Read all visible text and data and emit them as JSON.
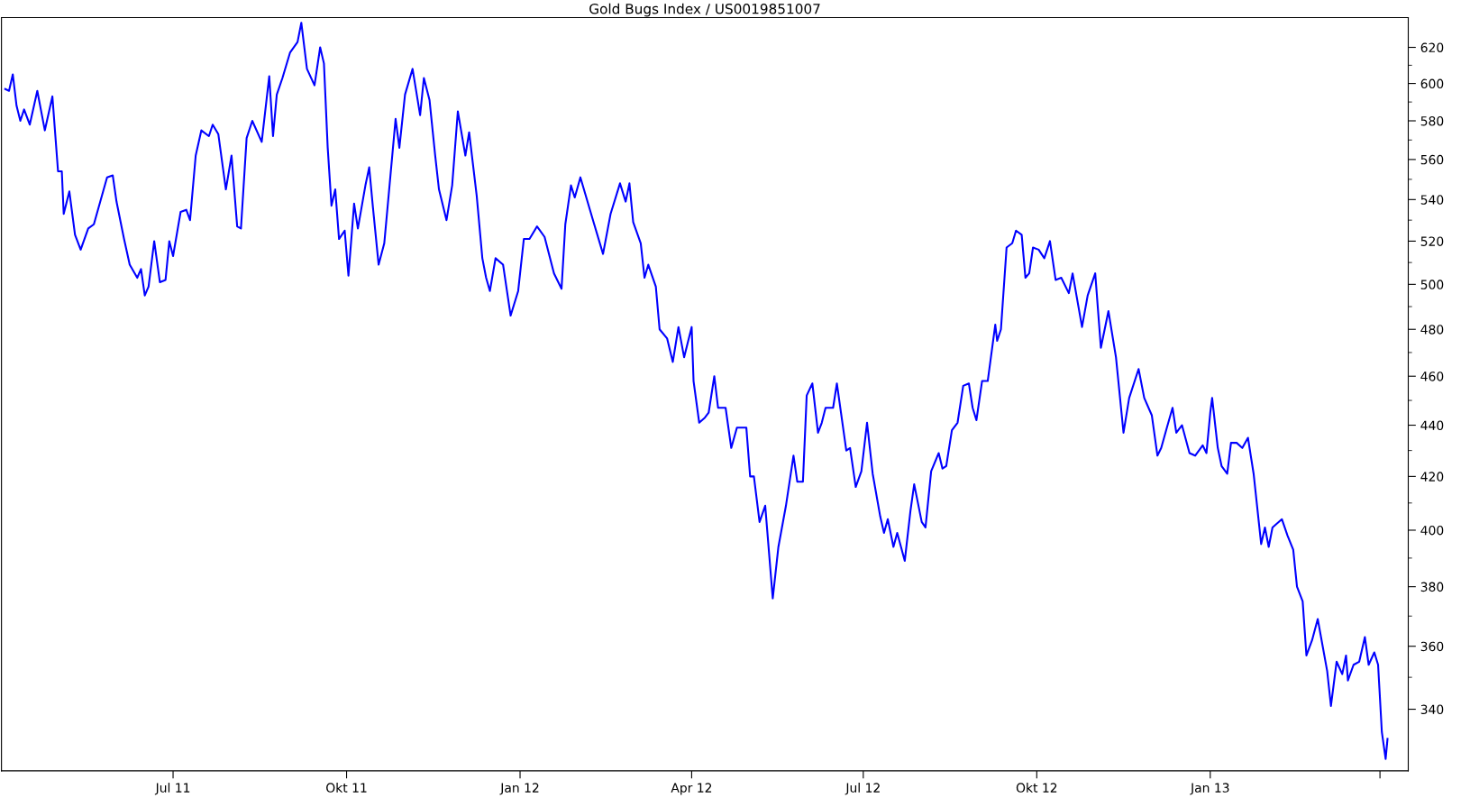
{
  "chart_data": {
    "type": "line",
    "title": "Gold Bugs Index / US0019851007",
    "log": "y",
    "grid": false,
    "marker": "none",
    "line_style": "solid",
    "xlim": [
      "2011-04-01",
      "2013-04-16"
    ],
    "xticks": [
      {
        "value": "2011-07-01",
        "label": "Jul 11"
      },
      {
        "value": "2011-10-01",
        "label": "Okt 11"
      },
      {
        "value": "2012-01-01",
        "label": "Jan 12"
      },
      {
        "value": "2012-04-01",
        "label": "Apr 12"
      },
      {
        "value": "2012-07-01",
        "label": "Jul 12"
      },
      {
        "value": "2012-10-01",
        "label": "Okt 12"
      },
      {
        "value": "2013-01-01",
        "label": "Jan 13"
      },
      {
        "value": "2013-04-01",
        "label": null
      }
    ],
    "ylim": [
      321.5,
      637
    ],
    "yticks": [
      340,
      360,
      380,
      400,
      420,
      440,
      460,
      480,
      500,
      520,
      540,
      560,
      580,
      600,
      620
    ],
    "series": [
      {
        "color": "#0000ff",
        "x": [
          "2011-04-03",
          "2011-04-05",
          "2011-04-07",
          "2011-04-09",
          "2011-04-11",
          "2011-04-13",
          "2011-04-16",
          "2011-04-20",
          "2011-04-24",
          "2011-04-28",
          "2011-05-01",
          "2011-05-03",
          "2011-05-04",
          "2011-05-07",
          "2011-05-10",
          "2011-05-13",
          "2011-05-17",
          "2011-05-20",
          "2011-05-24",
          "2011-05-27",
          "2011-05-30",
          "2011-06-01",
          "2011-06-05",
          "2011-06-08",
          "2011-06-12",
          "2011-06-14",
          "2011-06-16",
          "2011-06-18",
          "2011-06-21",
          "2011-06-24",
          "2011-06-27",
          "2011-06-29",
          "2011-07-01",
          "2011-07-05",
          "2011-07-08",
          "2011-07-10",
          "2011-07-13",
          "2011-07-16",
          "2011-07-20",
          "2011-07-22",
          "2011-07-25",
          "2011-07-29",
          "2011-08-01",
          "2011-08-04",
          "2011-08-06",
          "2011-08-09",
          "2011-08-12",
          "2011-08-17",
          "2011-08-21",
          "2011-08-23",
          "2011-08-25",
          "2011-08-28",
          "2011-09-01",
          "2011-09-05",
          "2011-09-07",
          "2011-09-10",
          "2011-09-14",
          "2011-09-17",
          "2011-09-19",
          "2011-09-21",
          "2011-09-23",
          "2011-09-25",
          "2011-09-27",
          "2011-09-30",
          "2011-10-02",
          "2011-10-05",
          "2011-10-07",
          "2011-10-11",
          "2011-10-13",
          "2011-10-15",
          "2011-10-18",
          "2011-10-21",
          "2011-10-27",
          "2011-10-29",
          "2011-11-01",
          "2011-11-05",
          "2011-11-09",
          "2011-11-11",
          "2011-11-14",
          "2011-11-17",
          "2011-11-19",
          "2011-11-23",
          "2011-11-26",
          "2011-11-29",
          "2011-12-03",
          "2011-12-05",
          "2011-12-09",
          "2011-12-12",
          "2011-12-14",
          "2011-12-16",
          "2011-12-19",
          "2011-12-23",
          "2011-12-27",
          "2011-12-31",
          "2012-01-03",
          "2012-01-06",
          "2012-01-10",
          "2012-01-14",
          "2012-01-19",
          "2012-01-23",
          "2012-01-25",
          "2012-01-28",
          "2012-01-30",
          "2012-02-02",
          "2012-02-09",
          "2012-02-14",
          "2012-02-18",
          "2012-02-23",
          "2012-02-26",
          "2012-02-28",
          "2012-03-01",
          "2012-03-05",
          "2012-03-07",
          "2012-03-09",
          "2012-03-13",
          "2012-03-15",
          "2012-03-19",
          "2012-03-22",
          "2012-03-25",
          "2012-03-28",
          "2012-04-01",
          "2012-04-02",
          "2012-04-05",
          "2012-04-08",
          "2012-04-10",
          "2012-04-13",
          "2012-04-15",
          "2012-04-19",
          "2012-04-22",
          "2012-04-25",
          "2012-04-30",
          "2012-05-02",
          "2012-05-04",
          "2012-05-07",
          "2012-05-10",
          "2012-05-14",
          "2012-05-17",
          "2012-05-21",
          "2012-05-25",
          "2012-05-27",
          "2012-05-30",
          "2012-06-01",
          "2012-06-04",
          "2012-06-07",
          "2012-06-09",
          "2012-06-11",
          "2012-06-15",
          "2012-06-17",
          "2012-06-22",
          "2012-06-24",
          "2012-06-27",
          "2012-06-30",
          "2012-07-03",
          "2012-07-06",
          "2012-07-10",
          "2012-07-12",
          "2012-07-14",
          "2012-07-17",
          "2012-07-19",
          "2012-07-23",
          "2012-07-26",
          "2012-07-28",
          "2012-08-01",
          "2012-08-03",
          "2012-08-06",
          "2012-08-10",
          "2012-08-12",
          "2012-08-14",
          "2012-08-17",
          "2012-08-20",
          "2012-08-23",
          "2012-08-26",
          "2012-08-28",
          "2012-08-30",
          "2012-09-02",
          "2012-09-05",
          "2012-09-09",
          "2012-09-10",
          "2012-09-12",
          "2012-09-15",
          "2012-09-18",
          "2012-09-20",
          "2012-09-23",
          "2012-09-25",
          "2012-09-27",
          "2012-09-29",
          "2012-10-02",
          "2012-10-05",
          "2012-10-08",
          "2012-10-11",
          "2012-10-14",
          "2012-10-18",
          "2012-10-20",
          "2012-10-25",
          "2012-10-28",
          "2012-11-01",
          "2012-11-04",
          "2012-11-08",
          "2012-11-12",
          "2012-11-16",
          "2012-11-19",
          "2012-11-24",
          "2012-11-27",
          "2012-12-01",
          "2012-12-04",
          "2012-12-06",
          "2012-12-09",
          "2012-12-12",
          "2012-12-14",
          "2012-12-17",
          "2012-12-21",
          "2012-12-24",
          "2012-12-28",
          "2012-12-30",
          "2013-01-01",
          "2013-01-02",
          "2013-01-05",
          "2013-01-07",
          "2013-01-10",
          "2013-01-12",
          "2013-01-15",
          "2013-01-18",
          "2013-01-21",
          "2013-01-24",
          "2013-01-28",
          "2013-01-30",
          "2013-02-01",
          "2013-02-03",
          "2013-02-08",
          "2013-02-11",
          "2013-02-14",
          "2013-02-16",
          "2013-02-19",
          "2013-02-21",
          "2013-02-24",
          "2013-02-27",
          "2013-03-04",
          "2013-03-06",
          "2013-03-09",
          "2013-03-12",
          "2013-03-14",
          "2013-03-15",
          "2013-03-18",
          "2013-03-21",
          "2013-03-24",
          "2013-03-26",
          "2013-03-29",
          "2013-03-31",
          "2013-04-02",
          "2013-04-04",
          "2013-04-05"
        ],
        "values": [
          597,
          596,
          605,
          588,
          580,
          586,
          578,
          596,
          575,
          593,
          554,
          554,
          533,
          544,
          523,
          516,
          526,
          528,
          541,
          551,
          552,
          539,
          521,
          509,
          503,
          507,
          495,
          499,
          520,
          501,
          502,
          520,
          513,
          534,
          535,
          530,
          562,
          575,
          572,
          578,
          573,
          545,
          562,
          527,
          526,
          571,
          580,
          569,
          604,
          572,
          594,
          603,
          617,
          623,
          634,
          608,
          599,
          620,
          611,
          566,
          537,
          545,
          521,
          525,
          504,
          538,
          526,
          547,
          556,
          536,
          509,
          519,
          581,
          566,
          594,
          608,
          583,
          603,
          591,
          562,
          545,
          530,
          547,
          585,
          562,
          574,
          542,
          512,
          503,
          497,
          512,
          509,
          486,
          497,
          521,
          521,
          527,
          522,
          505,
          498,
          528,
          547,
          541,
          551,
          529,
          514,
          533,
          548,
          539,
          548,
          529,
          519,
          503,
          509,
          499,
          480,
          476,
          466,
          481,
          468,
          481,
          458,
          441,
          443,
          445,
          460,
          447,
          447,
          431,
          439,
          439,
          420,
          420,
          403,
          409,
          376,
          394,
          409,
          428,
          418,
          418,
          452,
          457,
          437,
          441,
          447,
          447,
          457,
          430,
          431,
          416,
          422,
          441,
          421,
          405,
          399,
          404,
          394,
          399,
          389,
          407,
          417,
          403,
          401,
          422,
          429,
          423,
          424,
          438,
          441,
          456,
          457,
          447,
          442,
          458,
          458,
          482,
          475,
          480,
          517,
          519,
          525,
          523,
          503,
          505,
          517,
          516,
          512,
          520,
          502,
          503,
          496,
          505,
          481,
          495,
          505,
          472,
          488,
          468,
          437,
          451,
          463,
          451,
          444,
          428,
          431,
          439,
          447,
          437,
          440,
          429,
          428,
          432,
          429,
          445,
          451,
          431,
          424,
          421,
          433,
          433,
          431,
          435,
          421,
          395,
          401,
          394,
          401,
          404,
          398,
          393,
          380,
          375,
          357,
          362,
          369,
          352,
          341,
          355,
          351,
          357,
          349,
          354,
          355,
          363,
          354,
          358,
          354,
          333,
          325,
          331
        ]
      }
    ]
  }
}
